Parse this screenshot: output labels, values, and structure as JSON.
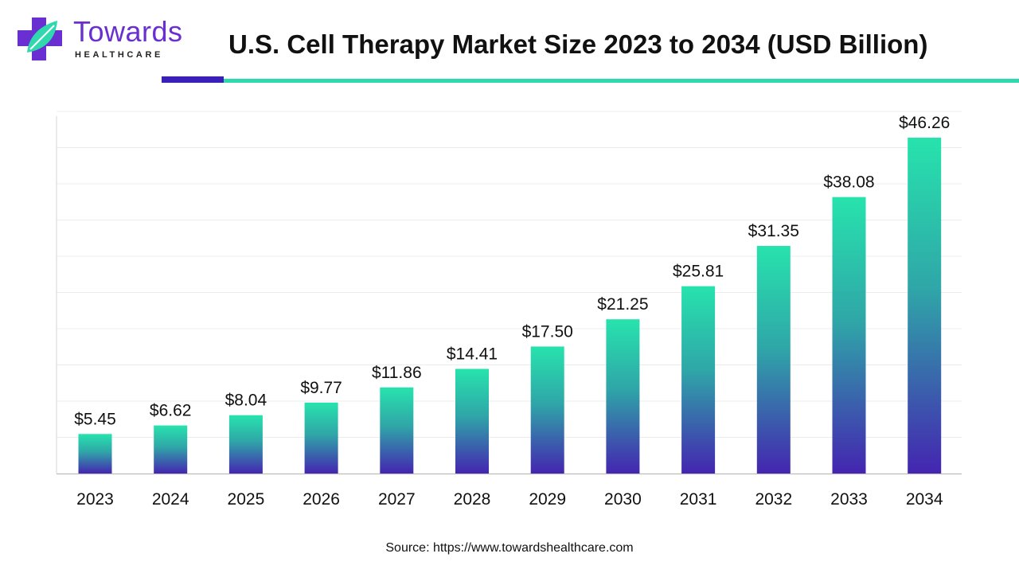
{
  "brand": {
    "name": "Towards",
    "tagline": "HEALTHCARE",
    "colors": {
      "purple": "#6a2fd1",
      "teal": "#2dd9ad",
      "dark_accent": "#3a1fb8"
    }
  },
  "header": {
    "title": "U.S. Cell Therapy Market Size 2023 to 2034 (USD Billion)"
  },
  "footer": {
    "source": "Source: https://www.towardshealthcare.com"
  },
  "chart_data": {
    "type": "bar",
    "title": "U.S. Cell Therapy Market Size 2023 to 2034 (USD Billion)",
    "categories": [
      "2023",
      "2024",
      "2025",
      "2026",
      "2027",
      "2028",
      "2029",
      "2030",
      "2031",
      "2032",
      "2033",
      "2034"
    ],
    "values": [
      5.45,
      6.62,
      8.04,
      9.77,
      11.86,
      14.41,
      17.5,
      21.25,
      25.81,
      31.35,
      38.08,
      46.26
    ],
    "value_labels": [
      "$5.45",
      "$6.62",
      "$8.04",
      "$9.77",
      "$11.86",
      "$14.41",
      "$17.50",
      "$21.25",
      "$25.81",
      "$31.35",
      "$38.08",
      "$46.26"
    ],
    "xlabel": "",
    "ylabel": "",
    "ylim": [
      0,
      50
    ],
    "grid": true,
    "legend": "none",
    "bar_gradient": {
      "top": "#27e3ad",
      "bottom": "#4425b0"
    }
  }
}
